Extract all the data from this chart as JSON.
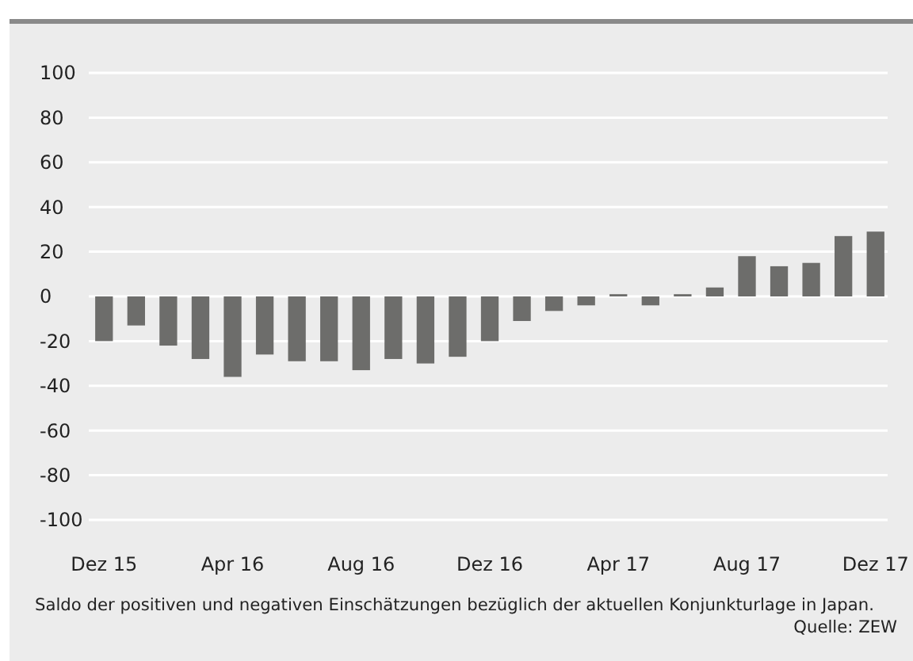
{
  "chart_data": {
    "type": "bar",
    "categories": [
      "Dez 15",
      null,
      null,
      null,
      "Apr 16",
      null,
      null,
      null,
      "Aug 16",
      null,
      null,
      null,
      "Dez 16",
      null,
      null,
      null,
      "Apr 17",
      null,
      null,
      null,
      "Aug 17",
      null,
      null,
      null,
      "Dez 17"
    ],
    "values": [
      -20,
      -13,
      -22,
      -28,
      -36,
      -26,
      -29,
      -29,
      -33,
      -28,
      -30,
      -27,
      -20,
      -11,
      -6.5,
      -4,
      1,
      -4,
      1,
      4,
      18,
      13.5,
      15,
      27,
      29
    ],
    "color": "#6d6d6b",
    "ylim": [
      -100,
      100
    ],
    "yticks": [
      -100,
      -80,
      -60,
      -40,
      -20,
      0,
      20,
      40,
      60,
      80,
      100
    ],
    "grid": "y",
    "annotations": [
      "Saldo der positiven und negativen Einschätzungen bezüglich der aktuellen Konjunkturlage in Japan.",
      "Quelle: ZEW"
    ]
  }
}
